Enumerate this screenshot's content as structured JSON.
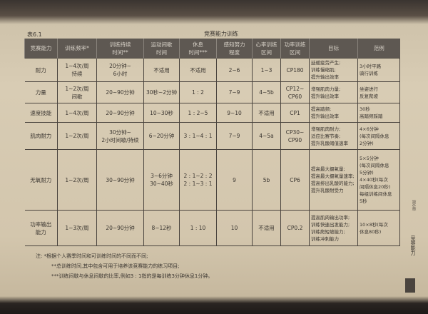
{
  "table_number": "表6.1",
  "table_title": "竞赛能力训练",
  "headers": [
    "竞赛能力",
    "训练频率*",
    "训练持续\n时间**",
    "运动间歇\n时间",
    "休息\n时间***",
    "感知努力\n程度",
    "心率训练\n区间",
    "功率训练\n区间",
    "目标",
    "范例"
  ],
  "rows": [
    [
      "耐力",
      "1~4次/周\n持续",
      "20分钟~\n6小时",
      "不适用",
      "不适用",
      "2~6",
      "1~3",
      "CP180",
      "延缓疲劳产生;\n训练慢缩肌;\n提升输出效率",
      "3小时平路\n骑行训练"
    ],
    [
      "力量",
      "1~2次/周\n间歇",
      "20~90分钟",
      "30秒~2分钟",
      "1 : 2",
      "7~9",
      "4~5b",
      "CP12~\nCP60",
      "增强肌肉力量;\n提升输出效率",
      "坐姿进行\n反复爬坡"
    ],
    [
      "速度技能",
      "1~4次/周",
      "20~90分钟",
      "10~30秒",
      "1 : 2~5",
      "9~10",
      "不适用",
      "CP1",
      "提高踏频;\n提升输出效率",
      "30秒\n高踏频踩踏"
    ],
    [
      "肌肉耐力",
      "1~2次/周",
      "30分钟~\n2小时间歇/持续",
      "6~20分钟",
      "3 : 1~4 : 1",
      "7~9",
      "4~5a",
      "CP30~\nCP90",
      "增强肌肉耐力;\n适应比赛节奏;\n提升乳酸阈值速率",
      "4×6分钟\n(每次间隔休息\n2分钟)"
    ],
    [
      "无氧耐力",
      "1~2次/周",
      "30~90分钟",
      "3~6分钟\n30~40秒",
      "2 : 1~2 : 2\n2 : 1~3 : 1",
      "9",
      "5b",
      "CP6",
      "提高最大摄氧量;\n提高最大摄氧量速率;\n提高排出乳酸的能力;\n提升乳酸耐受力",
      "5×5分钟\n(每次间隔休息\n5分钟)\n4×40秒(每次\n间隔休息20秒)\n每组训练间休息\n5秒"
    ],
    [
      "功率输出\n能力",
      "1~3次/周",
      "20~90分钟",
      "8~12秒",
      "1 : 10",
      "10",
      "不适用",
      "CP0.2",
      "提高肌肉输出功率;\n训练快速出发能力;\n训练爬短坡能力;\n训练冲刺能力",
      "10×8秒(每次\n休息80秒)"
    ]
  ],
  "notes": [
    "注:  *根据个人赛季时间和可训练时间的不同而不同;",
    "**总训练时间,其中包含可用于培养该竞赛能力的练习项目;",
    "***训练间歇与休息间歇的比率,例如3 : 1指的是每训练3分钟休息1分钟。"
  ],
  "side_tab": {
    "chapter": "第6章",
    "title": "竞赛能力"
  }
}
